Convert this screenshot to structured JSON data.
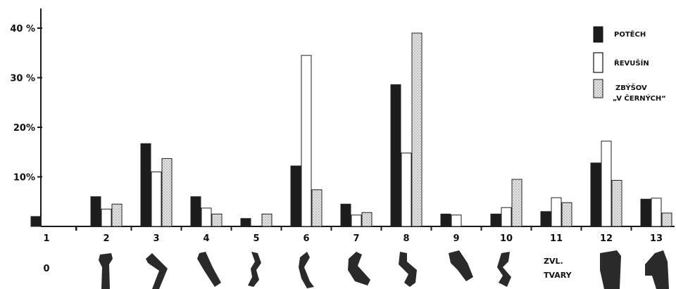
{
  "chart_data": {
    "type": "bar",
    "categories": [
      "1",
      "2",
      "3",
      "4",
      "5",
      "6",
      "7",
      "8",
      "9",
      "10",
      "11",
      "12",
      "13"
    ],
    "series": [
      {
        "name": "POTĚCH",
        "values": [
          2,
          6,
          16.7,
          6,
          1.6,
          12.2,
          4.5,
          28.6,
          2.5,
          2.5,
          3,
          12.8,
          5.5
        ]
      },
      {
        "name": "ŘEVUŠÍN",
        "values": [
          0,
          3.5,
          11,
          3.7,
          0,
          34.5,
          2.3,
          14.8,
          2.3,
          3.8,
          5.8,
          17.2,
          5.7
        ]
      },
      {
        "name": "ZBÝŠOV „V ČERNÝCH“",
        "values": [
          0,
          4.5,
          13.7,
          2.5,
          2.5,
          7.4,
          2.8,
          39,
          0,
          9.5,
          4.8,
          9.3,
          2.7
        ]
      }
    ],
    "yticks": [
      "10%",
      "20%",
      "30 %",
      "40 %"
    ],
    "ytick_values": [
      10,
      20,
      30,
      40
    ],
    "ylim": [
      0,
      45
    ],
    "bottom_labels": [
      "0",
      "",
      "",
      "",
      "",
      "",
      "",
      "",
      "",
      "",
      "ZVL.\nTVARY",
      "",
      ""
    ],
    "legend_position": "top-right",
    "grid": false
  },
  "colors": {
    "series_0": "#1c1c1c",
    "series_1": "#ffffff",
    "series_2": "#d8d8d8",
    "axis": "#1a1a1a"
  }
}
